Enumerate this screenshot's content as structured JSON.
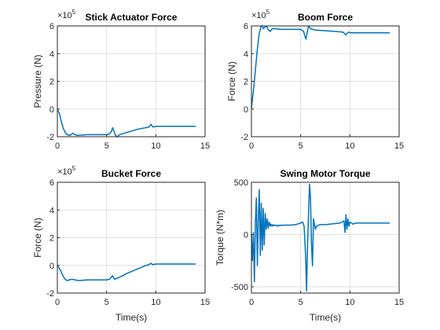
{
  "figure": {
    "background": "#ffffff",
    "line_color": "#0072bd"
  },
  "chart_data": [
    {
      "type": "line",
      "title": "Stick Actuator Force",
      "xlabel": "",
      "ylabel": "Pressure (N)",
      "exponent_base": "×10",
      "exponent_power": "5",
      "xlim": [
        0,
        15
      ],
      "ylim": [
        -2,
        6
      ],
      "x_ticks": [
        "0",
        "5",
        "10",
        "15"
      ],
      "y_ticks": [
        "-2",
        "0",
        "2",
        "4",
        "6"
      ],
      "grid": true,
      "series": [
        {
          "x": [
            0,
            0.2,
            0.4,
            0.6,
            0.8,
            1.0,
            1.2,
            1.4,
            1.6,
            1.8,
            2.0,
            2.5,
            3.0,
            4.0,
            5.0,
            5.3,
            5.5,
            5.6,
            5.75,
            5.9,
            6.1,
            6.3,
            6.8,
            7.5,
            8.2,
            9.0,
            9.3,
            9.5,
            9.7,
            10.0,
            11.0,
            12.0,
            13.0,
            14.0
          ],
          "y": [
            -0.05,
            -0.3,
            -0.9,
            -1.4,
            -1.7,
            -1.85,
            -1.9,
            -1.85,
            -1.75,
            -1.85,
            -1.9,
            -1.88,
            -1.85,
            -1.85,
            -1.85,
            -1.8,
            -1.6,
            -1.35,
            -1.6,
            -1.9,
            -2.0,
            -1.85,
            -1.75,
            -1.6,
            -1.45,
            -1.35,
            -1.3,
            -1.1,
            -1.3,
            -1.25,
            -1.25,
            -1.25,
            -1.25,
            -1.25
          ]
        }
      ]
    },
    {
      "type": "line",
      "title": "Boom Force",
      "xlabel": "",
      "ylabel": "Force (N)",
      "exponent_base": "×10",
      "exponent_power": "5",
      "xlim": [
        0,
        15
      ],
      "ylim": [
        -2,
        6
      ],
      "x_ticks": [
        "0",
        "5",
        "10",
        "15"
      ],
      "y_ticks": [
        "-2",
        "0",
        "2",
        "4",
        "6"
      ],
      "grid": true,
      "series": [
        {
          "x": [
            0,
            0.2,
            0.4,
            0.6,
            0.8,
            1.0,
            1.1,
            1.2,
            1.35,
            1.5,
            1.7,
            1.9,
            2.1,
            2.4,
            3.0,
            4.0,
            5.0,
            5.3,
            5.45,
            5.55,
            5.65,
            5.8,
            6.0,
            6.5,
            7.5,
            8.5,
            9.3,
            9.6,
            9.7,
            9.85,
            10.1,
            11.0,
            12.0,
            13.0,
            14.0
          ],
          "y": [
            0.1,
            1.3,
            2.8,
            4.3,
            5.5,
            6.0,
            6.1,
            5.8,
            5.9,
            6.1,
            5.75,
            5.6,
            5.8,
            5.8,
            5.75,
            5.75,
            5.75,
            5.6,
            5.2,
            5.05,
            5.5,
            6.15,
            5.8,
            5.7,
            5.65,
            5.6,
            5.55,
            5.35,
            5.45,
            5.55,
            5.5,
            5.5,
            5.5,
            5.5,
            5.5
          ]
        }
      ]
    },
    {
      "type": "line",
      "title": "Bucket Force",
      "xlabel": "Time(s)",
      "ylabel": "Force (N)",
      "exponent_base": "×10",
      "exponent_power": "5",
      "xlim": [
        0,
        15
      ],
      "ylim": [
        -2,
        6
      ],
      "x_ticks": [
        "0",
        "5",
        "10",
        "15"
      ],
      "y_ticks": [
        "-2",
        "0",
        "2",
        "4",
        "6"
      ],
      "grid": true,
      "series": [
        {
          "x": [
            0,
            0.2,
            0.4,
            0.6,
            0.8,
            1.0,
            1.2,
            1.5,
            1.8,
            2.2,
            3.0,
            4.0,
            5.0,
            5.3,
            5.6,
            5.8,
            6.0,
            6.5,
            7.0,
            7.5,
            8.0,
            8.5,
            9.0,
            9.3,
            9.5,
            9.7,
            10.0,
            11.0,
            12.0,
            13.0,
            14.0
          ],
          "y": [
            -0.05,
            -0.2,
            -0.5,
            -0.8,
            -1.0,
            -1.1,
            -1.05,
            -1.0,
            -1.05,
            -1.1,
            -1.05,
            -1.05,
            -1.05,
            -1.0,
            -0.75,
            -1.0,
            -0.95,
            -0.8,
            -0.6,
            -0.45,
            -0.3,
            -0.15,
            0.0,
            0.05,
            0.15,
            0.05,
            0.1,
            0.1,
            0.1,
            0.1,
            0.1
          ]
        }
      ]
    },
    {
      "type": "line",
      "title": "Swing Motor Torque",
      "xlabel": "Time(s)",
      "ylabel": "Torque (N*m)",
      "exponent_base": "",
      "exponent_power": "",
      "xlim": [
        0,
        15
      ],
      "ylim": [
        -560,
        500
      ],
      "x_ticks": [
        "0",
        "5",
        "10",
        "15"
      ],
      "y_ticks": [
        "-500",
        "0",
        "500"
      ],
      "grid": true,
      "series": [
        {
          "x": [
            0,
            0.1,
            0.2,
            0.3,
            0.4,
            0.5,
            0.6,
            0.7,
            0.8,
            0.9,
            1.0,
            1.1,
            1.2,
            1.3,
            1.4,
            1.5,
            1.6,
            1.7,
            1.8,
            1.9,
            2.0,
            2.1,
            2.2,
            2.3,
            2.4,
            2.5,
            2.6,
            2.7,
            2.8,
            2.9,
            3.0,
            3.2,
            3.5,
            4.0,
            4.5,
            5.0,
            5.2,
            5.35,
            5.5,
            5.6,
            5.7,
            5.8,
            5.9,
            6.0,
            6.1,
            6.2,
            6.3,
            6.4,
            6.5,
            6.6,
            6.8,
            7.0,
            7.5,
            8.0,
            8.5,
            9.0,
            9.4,
            9.5,
            9.6,
            9.7,
            9.8,
            9.9,
            10.0,
            10.3,
            10.6,
            11.0,
            12.0,
            13.0,
            14.0
          ],
          "y": [
            0,
            -250,
            20,
            -450,
            100,
            350,
            -300,
            150,
            430,
            -200,
            300,
            -150,
            250,
            -100,
            200,
            50,
            150,
            60,
            120,
            80,
            100,
            80,
            95,
            85,
            90,
            85,
            90,
            80,
            90,
            85,
            90,
            88,
            90,
            90,
            95,
            110,
            120,
            80,
            -200,
            -540,
            -100,
            200,
            480,
            350,
            -100,
            -300,
            150,
            100,
            50,
            80,
            90,
            95,
            95,
            100,
            105,
            110,
            130,
            20,
            190,
            50,
            150,
            80,
            120,
            100,
            110,
            110,
            110,
            110,
            110
          ]
        }
      ]
    }
  ]
}
